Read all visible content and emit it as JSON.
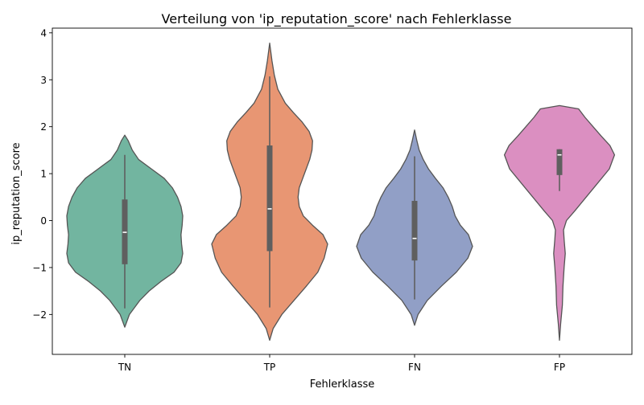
{
  "chart_data": {
    "type": "violin",
    "title": "Verteilung von 'ip_reputation_score' nach Fehlerklasse",
    "xlabel": "Fehlerklasse",
    "ylabel": "ip_reputation_score",
    "ylim": [
      -2.85,
      4.1
    ],
    "yticks": [
      {
        "value": -2,
        "label": "−2"
      },
      {
        "value": -1,
        "label": "−1"
      },
      {
        "value": 0,
        "label": "0"
      },
      {
        "value": 1,
        "label": "1"
      },
      {
        "value": 2,
        "label": "2"
      },
      {
        "value": 3,
        "label": "3"
      },
      {
        "value": 4,
        "label": "4"
      }
    ],
    "grid": false,
    "legend": "none",
    "categories": [
      {
        "name": "TN",
        "color": "#72b5a0",
        "range": [
          -2.27,
          1.82
        ],
        "whisker": [
          -1.87,
          1.4
        ],
        "q1": -0.93,
        "median": -0.25,
        "q3": 0.45,
        "density": [
          [
            -2.27,
            0.0
          ],
          [
            -2.0,
            0.08
          ],
          [
            -1.7,
            0.26
          ],
          [
            -1.5,
            0.42
          ],
          [
            -1.3,
            0.62
          ],
          [
            -1.1,
            0.85
          ],
          [
            -0.9,
            0.97
          ],
          [
            -0.7,
            1.0
          ],
          [
            -0.5,
            0.98
          ],
          [
            -0.3,
            0.97
          ],
          [
            -0.1,
            0.99
          ],
          [
            0.1,
            1.0
          ],
          [
            0.3,
            0.97
          ],
          [
            0.5,
            0.91
          ],
          [
            0.7,
            0.82
          ],
          [
            0.9,
            0.68
          ],
          [
            1.1,
            0.46
          ],
          [
            1.3,
            0.24
          ],
          [
            1.5,
            0.13
          ],
          [
            1.7,
            0.06
          ],
          [
            1.82,
            0.0
          ]
        ]
      },
      {
        "name": "TP",
        "color": "#e89673",
        "range": [
          -2.55,
          3.78
        ],
        "whisker": [
          -1.85,
          3.07
        ],
        "q1": -0.65,
        "median": 0.25,
        "q3": 1.6,
        "density": [
          [
            -2.55,
            0.0
          ],
          [
            -2.3,
            0.06
          ],
          [
            -2.0,
            0.21
          ],
          [
            -1.7,
            0.42
          ],
          [
            -1.4,
            0.63
          ],
          [
            -1.1,
            0.83
          ],
          [
            -0.8,
            0.94
          ],
          [
            -0.5,
            1.0
          ],
          [
            -0.3,
            0.92
          ],
          [
            -0.1,
            0.74
          ],
          [
            0.1,
            0.58
          ],
          [
            0.3,
            0.51
          ],
          [
            0.5,
            0.49
          ],
          [
            0.7,
            0.51
          ],
          [
            0.9,
            0.57
          ],
          [
            1.1,
            0.63
          ],
          [
            1.3,
            0.69
          ],
          [
            1.5,
            0.73
          ],
          [
            1.7,
            0.74
          ],
          [
            1.9,
            0.68
          ],
          [
            2.1,
            0.56
          ],
          [
            2.3,
            0.41
          ],
          [
            2.5,
            0.27
          ],
          [
            2.8,
            0.14
          ],
          [
            3.1,
            0.08
          ],
          [
            3.4,
            0.04
          ],
          [
            3.78,
            0.0
          ]
        ]
      },
      {
        "name": "FN",
        "color": "#919fc6",
        "range": [
          -2.23,
          1.93
        ],
        "whisker": [
          -1.68,
          1.37
        ],
        "q1": -0.85,
        "median": -0.38,
        "q3": 0.42,
        "density": [
          [
            -2.23,
            0.0
          ],
          [
            -2.0,
            0.06
          ],
          [
            -1.7,
            0.22
          ],
          [
            -1.4,
            0.46
          ],
          [
            -1.1,
            0.72
          ],
          [
            -0.8,
            0.92
          ],
          [
            -0.55,
            1.0
          ],
          [
            -0.3,
            0.93
          ],
          [
            -0.1,
            0.79
          ],
          [
            0.1,
            0.7
          ],
          [
            0.3,
            0.65
          ],
          [
            0.5,
            0.58
          ],
          [
            0.7,
            0.49
          ],
          [
            0.9,
            0.36
          ],
          [
            1.1,
            0.24
          ],
          [
            1.3,
            0.15
          ],
          [
            1.5,
            0.08
          ],
          [
            1.7,
            0.04
          ],
          [
            1.93,
            0.0
          ]
        ]
      },
      {
        "name": "FP",
        "color": "#db8fc1",
        "range": [
          -2.55,
          2.45
        ],
        "whisker": [
          0.63,
          1.52
        ],
        "q1": 0.97,
        "median": 1.4,
        "q3": 1.52,
        "density": [
          [
            -2.55,
            0.0
          ],
          [
            -2.2,
            0.02
          ],
          [
            -1.8,
            0.05
          ],
          [
            -1.4,
            0.06
          ],
          [
            -1.0,
            0.08
          ],
          [
            -0.7,
            0.1
          ],
          [
            -0.4,
            0.08
          ],
          [
            -0.2,
            0.07
          ],
          [
            0.0,
            0.12
          ],
          [
            0.2,
            0.26
          ],
          [
            0.5,
            0.46
          ],
          [
            0.8,
            0.66
          ],
          [
            1.1,
            0.86
          ],
          [
            1.4,
            0.95
          ],
          [
            1.6,
            0.87
          ],
          [
            1.8,
            0.72
          ],
          [
            2.0,
            0.58
          ],
          [
            2.2,
            0.44
          ],
          [
            2.38,
            0.33
          ],
          [
            2.45,
            0.0
          ]
        ]
      }
    ]
  }
}
